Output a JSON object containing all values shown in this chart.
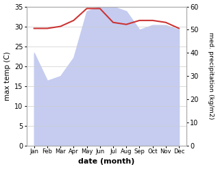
{
  "months": [
    "Jan",
    "Feb",
    "Mar",
    "Apr",
    "May",
    "Jun",
    "Jul",
    "Aug",
    "Sep",
    "Oct",
    "Nov",
    "Dec"
  ],
  "temp": [
    29.5,
    29.5,
    30.0,
    31.5,
    34.5,
    34.5,
    31.0,
    30.5,
    31.5,
    31.5,
    31.0,
    29.5
  ],
  "precip": [
    40.0,
    28.0,
    30.0,
    38.0,
    58.0,
    60.0,
    60.0,
    58.0,
    50.0,
    52.0,
    52.0,
    50.0
  ],
  "temp_color": "#cc3333",
  "precip_fill_color": "#c5ccf0",
  "xlabel": "date (month)",
  "ylabel_left": "max temp (C)",
  "ylabel_right": "med. precipitation (kg/m2)",
  "ylim_left": [
    0,
    35
  ],
  "ylim_right": [
    0,
    60
  ],
  "yticks_left": [
    0,
    5,
    10,
    15,
    20,
    25,
    30,
    35
  ],
  "yticks_right": [
    0,
    10,
    20,
    30,
    40,
    50,
    60
  ],
  "bg_color": "#ffffff",
  "grid_color": "#cccccc",
  "spine_color": "#aaaaaa"
}
